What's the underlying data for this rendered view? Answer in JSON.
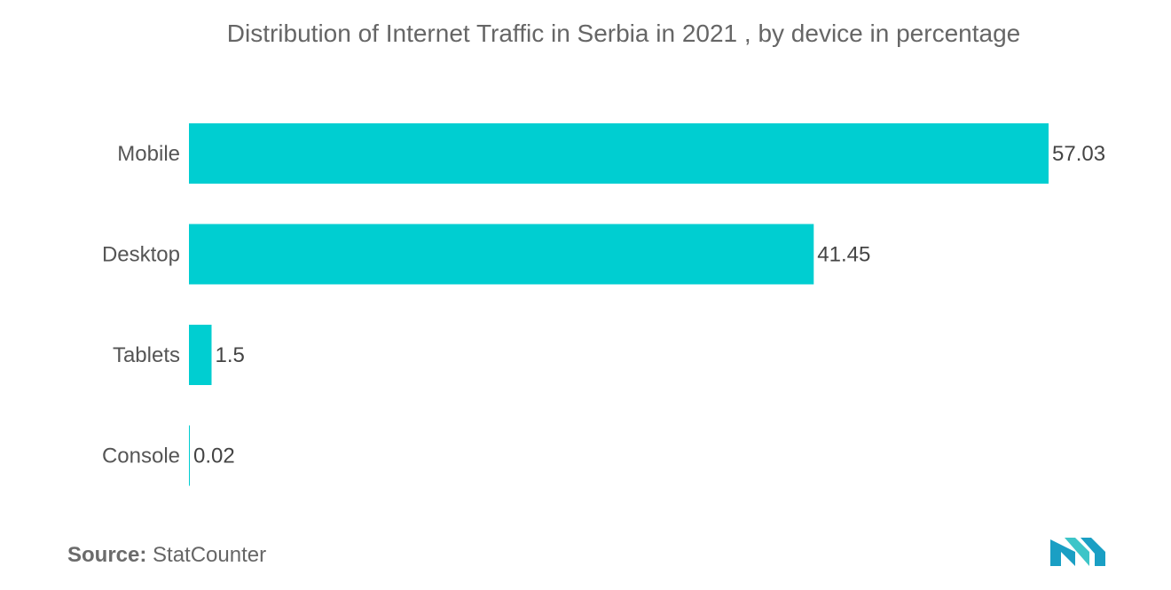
{
  "chart_data": {
    "type": "bar",
    "orientation": "horizontal",
    "title": "Distribution of Internet Traffic in Serbia in 2021 , by device in percentage",
    "categories": [
      "Mobile",
      "Desktop",
      "Tablets",
      "Console"
    ],
    "values": [
      57.03,
      41.45,
      1.5,
      0.02
    ],
    "value_labels": [
      "57.03",
      "41.45",
      "1.5",
      "0.02"
    ],
    "xlabel": "",
    "ylabel": "",
    "xlim": [
      0,
      57.03
    ],
    "grid": false,
    "legend": "none",
    "bar_color": "#00CED1"
  },
  "source": {
    "prefix": "Source:",
    "text": "StatCounter"
  },
  "logo": {
    "icon": "mordor-intelligence-logo-icon",
    "colors": [
      "#1a9fc4",
      "#3dc5c8"
    ]
  }
}
